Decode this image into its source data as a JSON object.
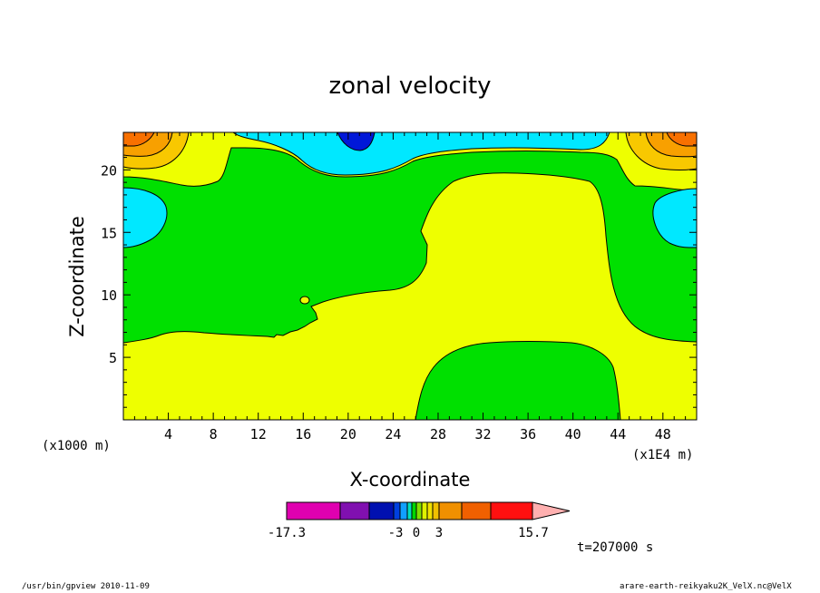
{
  "chart_data": {
    "type": "heatmap",
    "title": "zonal velocity",
    "xlabel": "X-coordinate",
    "ylabel": "Z-coordinate",
    "x_unit_left": "(x1000 m)",
    "x_unit_right": "(x1E4 m)",
    "xlim": [
      0,
      51
    ],
    "ylim": [
      0,
      23
    ],
    "x_ticks": [
      4,
      8,
      12,
      16,
      20,
      24,
      28,
      32,
      36,
      40,
      44,
      48
    ],
    "y_ticks": [
      5,
      10,
      15,
      20
    ],
    "colorbar": {
      "labels": [
        "-17.3",
        "-3",
        "0",
        "3",
        "15.7"
      ],
      "colors": [
        "#e000b0",
        "#8010b0",
        "#0010b0",
        "#0040e0",
        "#10a0ff",
        "#00e0c0",
        "#00d800",
        "#80e000",
        "#e0f000",
        "#f0e000",
        "#f0c000",
        "#f09000",
        "#f06000",
        "#ff1010",
        "#ff7070",
        "#ffb0b0"
      ]
    },
    "region_colors": {
      "green": "#00e000",
      "yellow": "#eeff00",
      "cyan": "#00e8ff",
      "blue": "#0018d8",
      "orange": "#f8a000",
      "orange_light": "#f8c800",
      "orange_dark": "#f87000"
    },
    "time_label": "t=207000 s"
  },
  "footer": {
    "left": "/usr/bin/gpview   2010-11-09",
    "right": "arare-earth-reikyaku2K_VelX.nc@VelX"
  }
}
